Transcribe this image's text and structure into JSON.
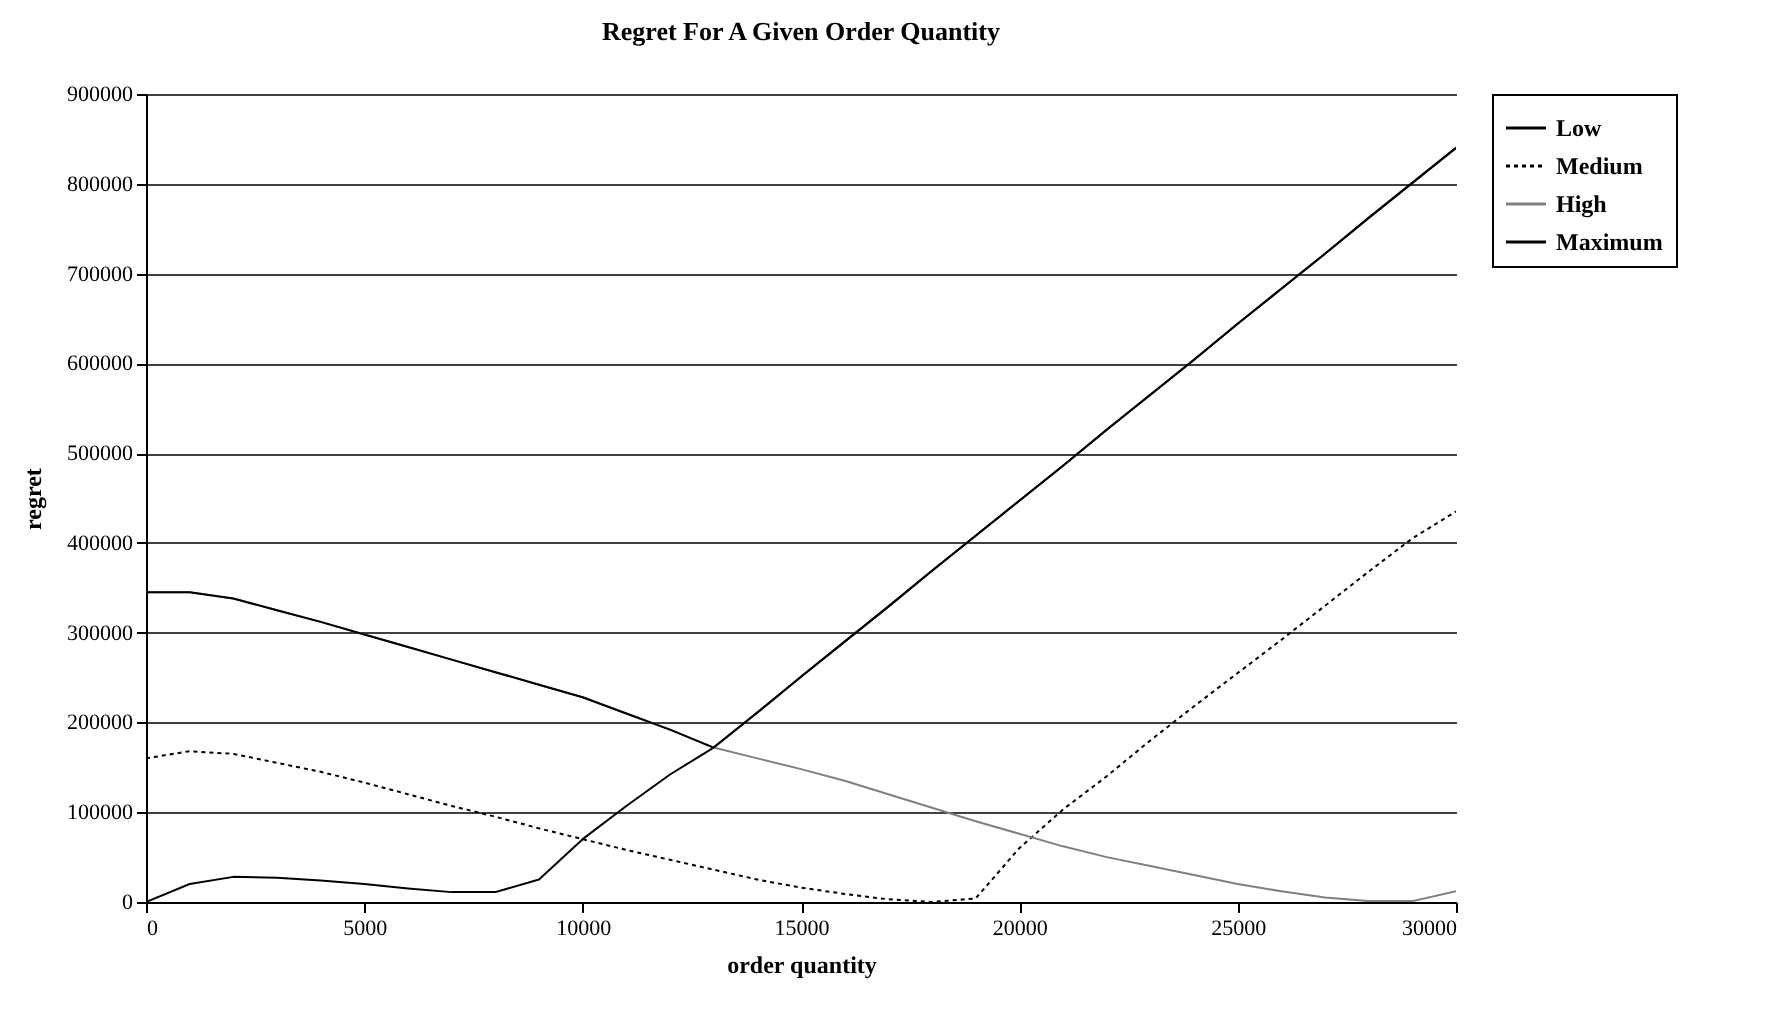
{
  "chart_data": {
    "type": "line",
    "title": "Regret For A Given Order Quantity",
    "xlabel": "order quantity",
    "ylabel": "regret",
    "x": [
      0,
      1000,
      2000,
      3000,
      4000,
      5000,
      6000,
      7000,
      8000,
      9000,
      10000,
      11000,
      12000,
      13000,
      14000,
      15000,
      16000,
      17000,
      18000,
      19000,
      20000,
      21000,
      22000,
      23000,
      24000,
      25000,
      26000,
      27000,
      28000,
      29000,
      30000
    ],
    "series": [
      {
        "name": "Low",
        "color": "#000000",
        "line_style": "solid",
        "values": [
          0,
          20000,
          28000,
          27000,
          24000,
          20000,
          15000,
          11000,
          11000,
          25000,
          70000,
          107000,
          142000,
          172000,
          211000,
          251000,
          290000,
          329000,
          369000,
          408000,
          447000,
          486000,
          526000,
          565000,
          604000,
          644000,
          683000,
          722000,
          762000,
          801000,
          840000
        ]
      },
      {
        "name": "Medium",
        "color": "#000000",
        "line_style": "dotted",
        "values": [
          160000,
          168000,
          165000,
          155000,
          145000,
          133000,
          120000,
          107000,
          95000,
          82000,
          70000,
          58000,
          47000,
          36000,
          25000,
          16000,
          9000,
          3000,
          0,
          4000,
          60000,
          103000,
          140000,
          180000,
          218000,
          255000,
          292000,
          330000,
          368000,
          405000,
          435000
        ]
      },
      {
        "name": "High",
        "color": "#808080",
        "line_style": "solid",
        "values": [
          345000,
          345000,
          338000,
          325000,
          312000,
          298000,
          284000,
          270000,
          256000,
          242000,
          228000,
          210000,
          192000,
          172000,
          160000,
          148000,
          135000,
          120000,
          105000,
          90000,
          76000,
          62000,
          50000,
          40000,
          30000,
          20000,
          12000,
          5000,
          1000,
          1000,
          12000
        ]
      },
      {
        "name": "Maximum",
        "color": "#000000",
        "line_style": "solid",
        "values": [
          345000,
          345000,
          338000,
          325000,
          312000,
          298000,
          284000,
          270000,
          256000,
          242000,
          228000,
          210000,
          192000,
          172000,
          211000,
          251000,
          290000,
          329000,
          369000,
          408000,
          447000,
          486000,
          526000,
          565000,
          604000,
          644000,
          683000,
          722000,
          762000,
          801000,
          840000
        ]
      }
    ],
    "xlim": [
      0,
      30000
    ],
    "xticks": [
      0,
      5000,
      10000,
      15000,
      20000,
      25000,
      30000
    ],
    "ylim": [
      0,
      900000
    ],
    "yticks": [
      0,
      100000,
      200000,
      300000,
      400000,
      500000,
      600000,
      700000,
      800000,
      900000
    ],
    "grid": "y",
    "legend": "right",
    "marker": "none"
  }
}
